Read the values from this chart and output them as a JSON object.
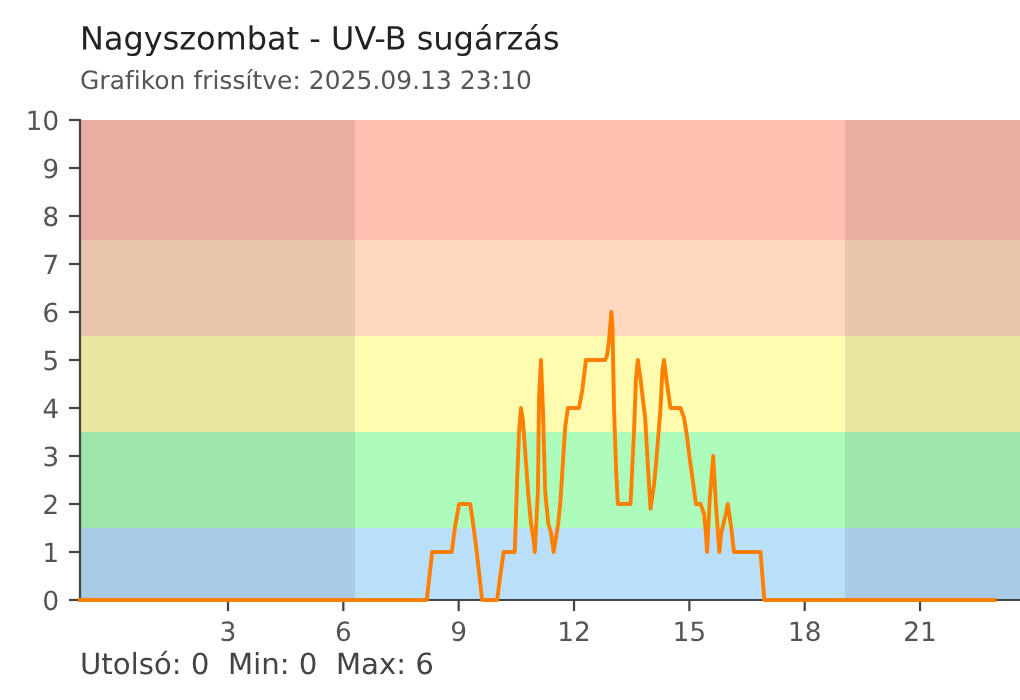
{
  "chart_data": {
    "type": "line",
    "title": "Nagyszombat - UV-B sugárzás",
    "subtitle": "Grafikon frissítve: 2025.09.13 23:10",
    "annotations": [
      "Utolsó: 0  Min: 0  Max: 6"
    ],
    "xlim": [
      -0.85,
      23.6
    ],
    "xticks": [
      3,
      6,
      9,
      12,
      15,
      18,
      21
    ],
    "ylim": [
      0,
      10
    ],
    "yticks": [
      0,
      1,
      2,
      3,
      4,
      5,
      6,
      7,
      8,
      9,
      10
    ],
    "grid": false,
    "legend": false,
    "marker": "none",
    "line_style": "solid",
    "bands": [
      {
        "axis": "y",
        "from": 0,
        "to": 1.5,
        "color": "#b9dffa"
      },
      {
        "axis": "y",
        "from": 1.5,
        "to": 3.5,
        "color": "#adfcbc"
      },
      {
        "axis": "y",
        "from": 3.5,
        "to": 5.5,
        "color": "#fffcb0"
      },
      {
        "axis": "y",
        "from": 5.5,
        "to": 7.5,
        "color": "#ffd8bd"
      },
      {
        "axis": "y",
        "from": 7.5,
        "to": 10,
        "color": "#ffbfb0"
      },
      {
        "axis": "x",
        "from": -0.85,
        "to": 6.3,
        "color": "#1a1a1a"
      },
      {
        "axis": "x",
        "from": 19.05,
        "to": 23.6,
        "color": "#1a1a1a"
      }
    ],
    "series": [
      {
        "color": "#ff8000",
        "x": [
          -0.85,
          8.17,
          8.31,
          8.82,
          8.9,
          9.01,
          9.3,
          9.39,
          9.47,
          9.61,
          10.0,
          10.08,
          10.17,
          10.46,
          10.52,
          10.57,
          10.62,
          10.67,
          10.81,
          10.88,
          10.95,
          10.98,
          11.06,
          11.09,
          11.14,
          11.19,
          11.25,
          11.33,
          11.4,
          11.47,
          11.59,
          11.65,
          11.77,
          11.84,
          12.13,
          12.22,
          12.31,
          12.81,
          12.86,
          12.91,
          12.97,
          13.0,
          13.04,
          13.1,
          13.14,
          13.47,
          13.56,
          13.61,
          13.66,
          13.73,
          13.78,
          13.85,
          13.9,
          13.95,
          13.99,
          14.08,
          14.13,
          14.2,
          14.25,
          14.3,
          14.34,
          14.42,
          14.51,
          14.77,
          14.86,
          14.94,
          15.0,
          15.07,
          15.12,
          15.17,
          15.29,
          15.38,
          15.43,
          15.46,
          15.53,
          15.62,
          15.69,
          15.78,
          15.83,
          15.95,
          16.0,
          16.09,
          16.16,
          16.85,
          16.95,
          22.94
        ],
        "values": [
          0,
          0,
          1,
          1,
          1.5,
          2,
          2,
          1.5,
          1,
          0,
          0,
          0.5,
          1,
          1,
          2.5,
          3.5,
          4,
          3.75,
          2.2,
          1.6,
          1.25,
          1,
          2.25,
          4.2,
          5,
          4,
          2.25,
          1.6,
          1.4,
          1,
          1.6,
          2.1,
          3.6,
          4,
          4,
          4.4,
          5,
          5,
          5.1,
          5.4,
          6,
          5.7,
          4,
          2.6,
          2,
          2,
          3.5,
          4.6,
          5,
          4.6,
          4.25,
          3.8,
          3.1,
          2.4,
          1.9,
          2.4,
          2.8,
          3.5,
          4,
          4.8,
          5,
          4.5,
          4,
          4,
          3.8,
          3.4,
          3,
          2.6,
          2.3,
          2,
          2,
          1.8,
          1.4,
          1,
          2.1,
          3,
          2,
          1,
          1.4,
          1.8,
          2,
          1.5,
          1,
          1,
          0,
          0
        ]
      }
    ]
  }
}
